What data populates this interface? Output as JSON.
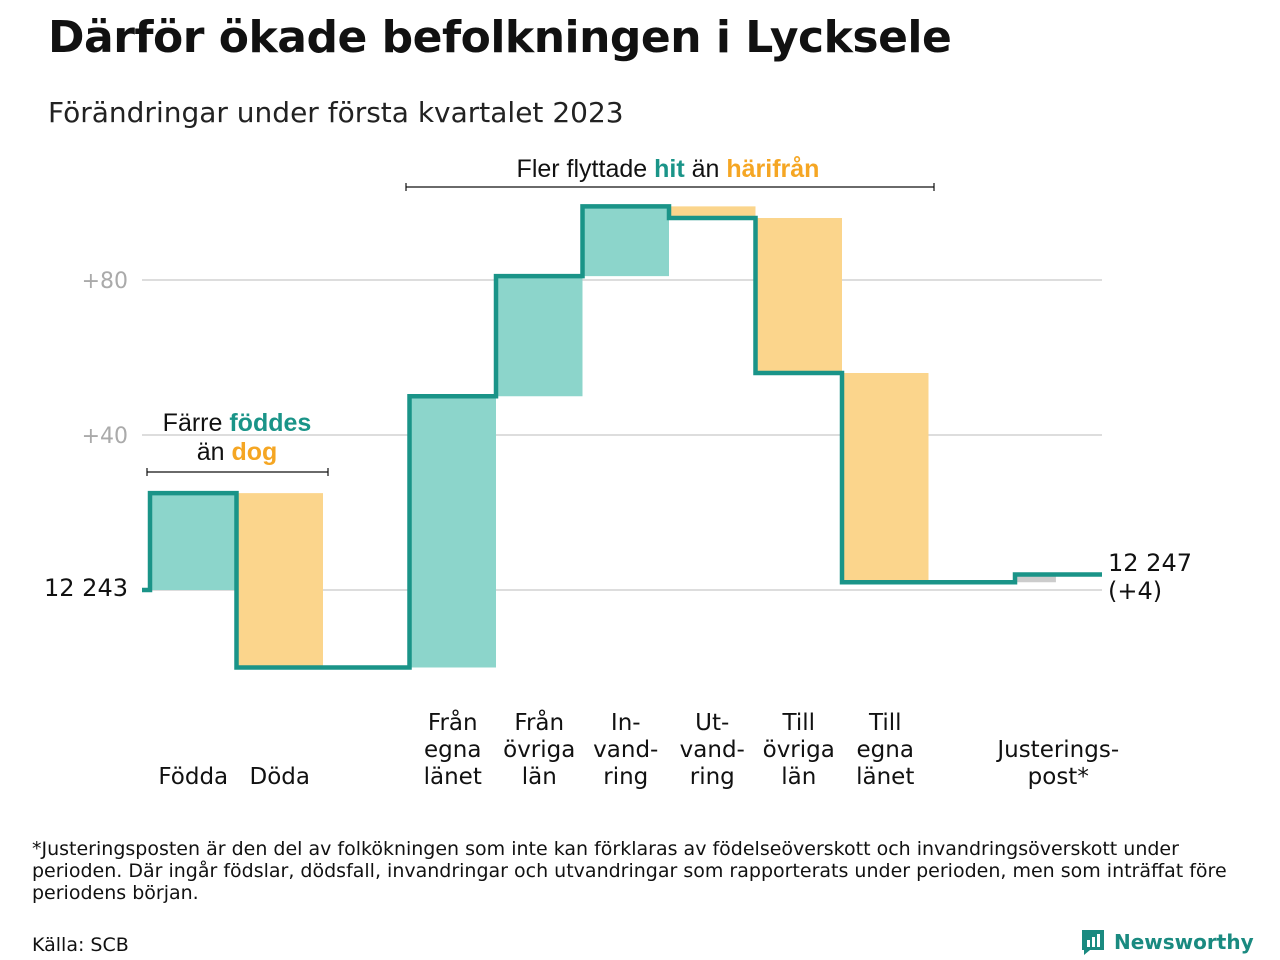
{
  "title": "Därför ökade befolkningen i Lycksele",
  "subtitle": "Förändringar under första kvartalet 2023",
  "annotations": {
    "births_deaths": {
      "line1_a": "Färre ",
      "line1_b": "föddes",
      "line2_a": "än ",
      "line2_b": "dog"
    },
    "migration": {
      "part_a": "Fler flyttade ",
      "part_b": "hit",
      "part_c": " än ",
      "part_d": "härifrån"
    }
  },
  "start_label": "12 243",
  "end_label": {
    "line1": "12 247",
    "line2": "(+4)"
  },
  "footnote": "*Justeringsposten är den del av folkökningen som inte kan förklaras av födelseöverskott och invandringsöverskott under perioden. Där ingår födslar, dödsfall, invandringar och utvandringar som rapporterats under perioden, men som inträffat före periodens början.",
  "source": "Källa: SCB",
  "brand": "Newsworthy",
  "colors": {
    "positive": "#8cd5cb",
    "negative": "#fbd58c",
    "adjustment": "#cccccc",
    "line": "#1a9488",
    "accent_teal": "#1a9488",
    "accent_orange": "#f5a623",
    "grid": "#dddddd",
    "tick": "#aaaaaa"
  },
  "chart_data": {
    "type": "waterfall",
    "start_value": 12243,
    "end_value": 12247,
    "ylim": [
      -20,
      100
    ],
    "y_ticks": [
      {
        "value": 40,
        "label": "+40"
      },
      {
        "value": 80,
        "label": "+80"
      }
    ],
    "categories": [
      {
        "label_lines": [
          "Födda"
        ],
        "value": 25,
        "kind": "positive"
      },
      {
        "label_lines": [
          "Döda"
        ],
        "value": -45,
        "kind": "negative"
      },
      {
        "label_lines": [],
        "value": 0,
        "kind": "gap"
      },
      {
        "label_lines": [
          "Från",
          "egna",
          "länet"
        ],
        "value": 70,
        "kind": "positive"
      },
      {
        "label_lines": [
          "Från",
          "övriga",
          "län"
        ],
        "value": 31,
        "kind": "positive"
      },
      {
        "label_lines": [
          "In-",
          "vand-",
          "ring"
        ],
        "value": 18,
        "kind": "positive"
      },
      {
        "label_lines": [
          "Ut-",
          "vand-",
          "ring"
        ],
        "value": -3,
        "kind": "negative"
      },
      {
        "label_lines": [
          "Till",
          "övriga",
          "län"
        ],
        "value": -40,
        "kind": "negative"
      },
      {
        "label_lines": [
          "Till",
          "egna",
          "länet"
        ],
        "value": -54,
        "kind": "negative"
      },
      {
        "label_lines": [],
        "value": 0,
        "kind": "gap"
      },
      {
        "label_lines": [
          "Justerings-",
          "post*"
        ],
        "value": 2,
        "kind": "adjustment"
      }
    ]
  }
}
